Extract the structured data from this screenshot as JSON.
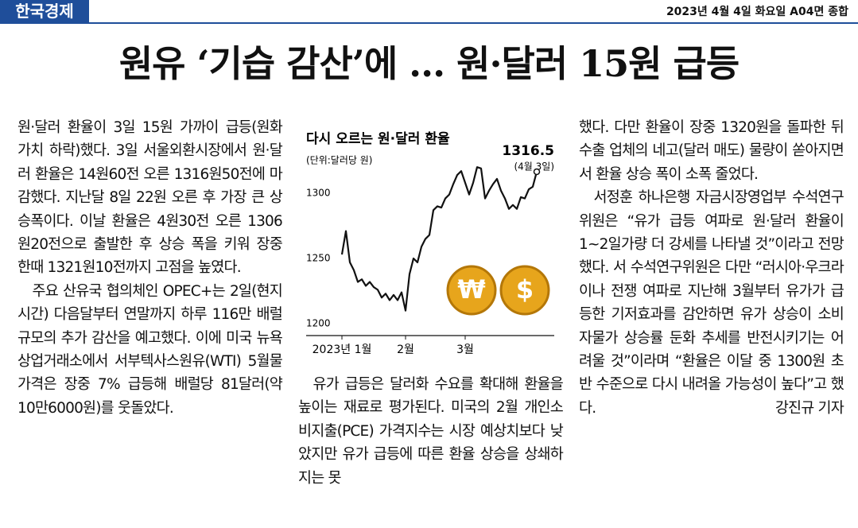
{
  "header": {
    "brand": "한국경제",
    "date": "2023년 4월 4일 화요일 A04면 종합"
  },
  "headline": "원유 ‘기습 감산’에 … 원·달러 15원 급등",
  "columns": [
    [
      "원·달러 환율이 3일 15원 가까이 급등(원화 가치 하락)했다. 3일 서울외환시장에서 원·달러 환율은 14원60전 오른 1316원50전에 마감했다. 지난달 8일 22원 오른 후 가장 큰 상승폭이다. 이날 환율은 4원30전 오른 1306원20전으로 출발한 후 상승 폭을 키워 장중 한때 1321원10전까지 고점을 높였다.",
      "주요 산유국 협의체인 OPEC+는 2일(현지시간) 다음달부터 연말까지 하루 116만 배럴 규모의 추가 감산을 예고했다. 이에 미국 뉴욕상업거래소에서 서부텍사스원유(WTI) 5월물 가격은 장중 7% 급등해 배럴당 81달러(약 10만6000원)를 웃돌았다."
    ],
    [
      "유가 급등은 달러화 수요를 확대해 환율을 높이는 재료로 평가된다. 미국의 2월 개인소비지출(PCE) 가격지수는 시장 예상치보다 낮았지만 유가 급등에 따른 환율 상승을 상쇄하지는 못"
    ],
    [
      "했다. 다만 환율이 장중 1320원을 돌파한 뒤 수출 업체의 네고(달러 매도) 물량이 쏟아지면서 환율 상승 폭이 소폭 줄었다.",
      "서정훈 하나은행 자금시장영업부 수석연구위원은 “유가 급등 여파로 원·달러 환율이 1~2일가량 더 강세를 나타낼 것”이라고 전망했다. 서 수석연구위원은 다만 “러시아·우크라이나 전쟁 여파로 지난해 3월부터 유가가 급등한 기저효과를 감안하면 유가 상승이 소비자물가 상승률 둔화 추세를 반전시키기는 어려울 것”이라며 “환율은 이달 중 1300원 초반 수준으로 다시 내려올 가능성이 높다”고 했다."
    ]
  ],
  "byline": "강진규 기자",
  "chart_data": {
    "type": "line",
    "title": "다시 오르는 원·달러 환율",
    "subtitle": "(단위:달러당 원)",
    "annotations": [
      "1316.5",
      "(4월 3일)"
    ],
    "icons": [
      "₩",
      "$"
    ],
    "categories": [
      "2023년 1월",
      null,
      null,
      null,
      null,
      null,
      null,
      null,
      null,
      null,
      null,
      null,
      null,
      null,
      null,
      null,
      "2월",
      null,
      null,
      null,
      null,
      null,
      null,
      null,
      null,
      null,
      null,
      null,
      null,
      null,
      null,
      "3월",
      null,
      null,
      null,
      null,
      null,
      null,
      null,
      null,
      null,
      null,
      null,
      null,
      null,
      null,
      null,
      null,
      null,
      null
    ],
    "series": [
      {
        "color": "#111111",
        "values": [
          1253,
          1271,
          1247,
          1241,
          1232,
          1234,
          1229,
          1232,
          1228,
          1226,
          1220,
          1223,
          1218,
          1222,
          1218,
          1224,
          1210,
          1238,
          1250,
          1247,
          1259,
          1265,
          1268,
          1287,
          1290,
          1289,
          1296,
          1299,
          1307,
          1314,
          1317,
          1308,
          1299,
          1308,
          1320,
          1319,
          1296,
          1302,
          1307,
          1311,
          1302,
          1296,
          1288,
          1291,
          1288,
          1297,
          1296,
          1303,
          1305,
          1316.5
        ]
      }
    ],
    "ylim": [
      1193,
      1325
    ],
    "yticks": [
      1200,
      1250,
      1300
    ],
    "grid": false
  }
}
